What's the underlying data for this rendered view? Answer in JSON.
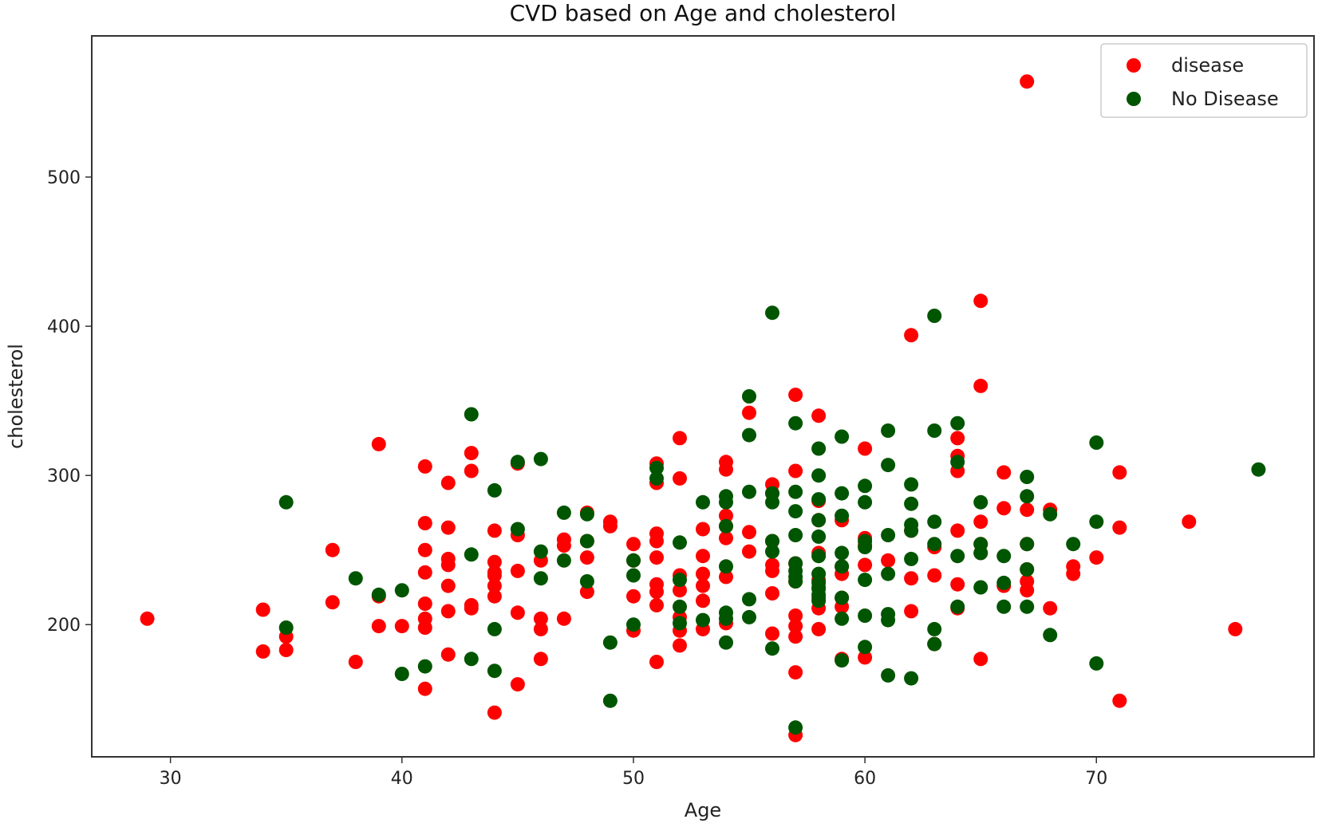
{
  "chart_data": {
    "type": "scatter",
    "title": "CVD based on Age and cholesterol",
    "xlabel": "Age",
    "ylabel": "cholesterol",
    "xlim": [
      26.6,
      79.4
    ],
    "ylim": [
      111.4,
      594.6
    ],
    "xticks": [
      30,
      40,
      50,
      60,
      70
    ],
    "yticks": [
      200,
      300,
      400,
      500
    ],
    "grid": false,
    "legend_position": "top-right",
    "series": [
      {
        "name": "disease",
        "color": "#ff0000",
        "points": [
          [
            29,
            204
          ],
          [
            34,
            182
          ],
          [
            34,
            210
          ],
          [
            35,
            192
          ],
          [
            35,
            183
          ],
          [
            37,
            215
          ],
          [
            37,
            250
          ],
          [
            38,
            175
          ],
          [
            39,
            199
          ],
          [
            39,
            219
          ],
          [
            39,
            321
          ],
          [
            40,
            199
          ],
          [
            41,
            157
          ],
          [
            41,
            198
          ],
          [
            41,
            204
          ],
          [
            41,
            214
          ],
          [
            41,
            235
          ],
          [
            41,
            250
          ],
          [
            41,
            268
          ],
          [
            41,
            306
          ],
          [
            42,
            180
          ],
          [
            42,
            209
          ],
          [
            42,
            226
          ],
          [
            42,
            240
          ],
          [
            42,
            244
          ],
          [
            42,
            265
          ],
          [
            42,
            295
          ],
          [
            43,
            211
          ],
          [
            43,
            213
          ],
          [
            43,
            303
          ],
          [
            43,
            315
          ],
          [
            44,
            141
          ],
          [
            44,
            219
          ],
          [
            44,
            226
          ],
          [
            44,
            233
          ],
          [
            44,
            235
          ],
          [
            44,
            242
          ],
          [
            44,
            263
          ],
          [
            45,
            160
          ],
          [
            45,
            208
          ],
          [
            45,
            236
          ],
          [
            45,
            260
          ],
          [
            45,
            308
          ],
          [
            46,
            177
          ],
          [
            46,
            197
          ],
          [
            46,
            204
          ],
          [
            46,
            243
          ],
          [
            47,
            204
          ],
          [
            47,
            253
          ],
          [
            47,
            257
          ],
          [
            48,
            222
          ],
          [
            48,
            245
          ],
          [
            48,
            256
          ],
          [
            48,
            275
          ],
          [
            49,
            266
          ],
          [
            49,
            269
          ],
          [
            50,
            196
          ],
          [
            50,
            219
          ],
          [
            50,
            243
          ],
          [
            50,
            254
          ],
          [
            51,
            175
          ],
          [
            51,
            213
          ],
          [
            51,
            222
          ],
          [
            51,
            227
          ],
          [
            51,
            245
          ],
          [
            51,
            256
          ],
          [
            51,
            261
          ],
          [
            51,
            295
          ],
          [
            51,
            308
          ],
          [
            52,
            186
          ],
          [
            52,
            196
          ],
          [
            52,
            205
          ],
          [
            52,
            223
          ],
          [
            52,
            233
          ],
          [
            52,
            298
          ],
          [
            52,
            325
          ],
          [
            53,
            197
          ],
          [
            53,
            216
          ],
          [
            53,
            226
          ],
          [
            53,
            234
          ],
          [
            53,
            246
          ],
          [
            53,
            264
          ],
          [
            54,
            201
          ],
          [
            54,
            232
          ],
          [
            54,
            258
          ],
          [
            54,
            266
          ],
          [
            54,
            273
          ],
          [
            54,
            304
          ],
          [
            54,
            309
          ],
          [
            55,
            249
          ],
          [
            55,
            262
          ],
          [
            55,
            342
          ],
          [
            56,
            194
          ],
          [
            56,
            221
          ],
          [
            56,
            236
          ],
          [
            56,
            240
          ],
          [
            56,
            256
          ],
          [
            56,
            288
          ],
          [
            56,
            294
          ],
          [
            57,
            126
          ],
          [
            57,
            168
          ],
          [
            57,
            192
          ],
          [
            57,
            199
          ],
          [
            57,
            206
          ],
          [
            57,
            229
          ],
          [
            57,
            241
          ],
          [
            57,
            303
          ],
          [
            57,
            354
          ],
          [
            58,
            197
          ],
          [
            58,
            211
          ],
          [
            58,
            218
          ],
          [
            58,
            225
          ],
          [
            58,
            230
          ],
          [
            58,
            248
          ],
          [
            58,
            270
          ],
          [
            58,
            283
          ],
          [
            58,
            340
          ],
          [
            59,
            177
          ],
          [
            59,
            212
          ],
          [
            59,
            218
          ],
          [
            59,
            234
          ],
          [
            59,
            239
          ],
          [
            59,
            270
          ],
          [
            60,
            178
          ],
          [
            60,
            240
          ],
          [
            60,
            253
          ],
          [
            60,
            258
          ],
          [
            60,
            318
          ],
          [
            61,
            243
          ],
          [
            62,
            209
          ],
          [
            62,
            231
          ],
          [
            62,
            263
          ],
          [
            62,
            394
          ],
          [
            63,
            187
          ],
          [
            63,
            233
          ],
          [
            63,
            252
          ],
          [
            64,
            211
          ],
          [
            64,
            227
          ],
          [
            64,
            263
          ],
          [
            64,
            303
          ],
          [
            64,
            313
          ],
          [
            64,
            325
          ],
          [
            65,
            177
          ],
          [
            65,
            248
          ],
          [
            65,
            254
          ],
          [
            65,
            269
          ],
          [
            65,
            360
          ],
          [
            65,
            417
          ],
          [
            66,
            226
          ],
          [
            66,
            278
          ],
          [
            66,
            302
          ],
          [
            67,
            223
          ],
          [
            67,
            229
          ],
          [
            67,
            237
          ],
          [
            67,
            254
          ],
          [
            67,
            277
          ],
          [
            67,
            564
          ],
          [
            68,
            211
          ],
          [
            68,
            277
          ],
          [
            69,
            234
          ],
          [
            69,
            239
          ],
          [
            70,
            245
          ],
          [
            71,
            149
          ],
          [
            71,
            265
          ],
          [
            71,
            302
          ],
          [
            74,
            269
          ],
          [
            76,
            197
          ]
        ]
      },
      {
        "name": "No Disease",
        "color": "#005500",
        "points": [
          [
            35,
            282
          ],
          [
            35,
            198
          ],
          [
            38,
            231
          ],
          [
            39,
            220
          ],
          [
            40,
            167
          ],
          [
            40,
            223
          ],
          [
            41,
            172
          ],
          [
            43,
            177
          ],
          [
            43,
            247
          ],
          [
            43,
            341
          ],
          [
            44,
            169
          ],
          [
            44,
            197
          ],
          [
            44,
            290
          ],
          [
            45,
            264
          ],
          [
            45,
            309
          ],
          [
            46,
            231
          ],
          [
            46,
            249
          ],
          [
            46,
            311
          ],
          [
            47,
            243
          ],
          [
            47,
            275
          ],
          [
            48,
            229
          ],
          [
            48,
            256
          ],
          [
            48,
            274
          ],
          [
            49,
            149
          ],
          [
            49,
            188
          ],
          [
            50,
            200
          ],
          [
            50,
            233
          ],
          [
            50,
            243
          ],
          [
            51,
            298
          ],
          [
            51,
            305
          ],
          [
            52,
            201
          ],
          [
            52,
            212
          ],
          [
            52,
            230
          ],
          [
            52,
            255
          ],
          [
            53,
            203
          ],
          [
            53,
            282
          ],
          [
            54,
            188
          ],
          [
            54,
            204
          ],
          [
            54,
            208
          ],
          [
            54,
            239
          ],
          [
            54,
            266
          ],
          [
            54,
            282
          ],
          [
            54,
            286
          ],
          [
            55,
            205
          ],
          [
            55,
            217
          ],
          [
            55,
            289
          ],
          [
            55,
            327
          ],
          [
            55,
            353
          ],
          [
            56,
            184
          ],
          [
            56,
            249
          ],
          [
            56,
            256
          ],
          [
            56,
            282
          ],
          [
            56,
            288
          ],
          [
            56,
            409
          ],
          [
            57,
            131
          ],
          [
            57,
            229
          ],
          [
            57,
            232
          ],
          [
            57,
            236
          ],
          [
            57,
            241
          ],
          [
            57,
            260
          ],
          [
            57,
            276
          ],
          [
            57,
            289
          ],
          [
            57,
            335
          ],
          [
            58,
            216
          ],
          [
            58,
            220
          ],
          [
            58,
            224
          ],
          [
            58,
            228
          ],
          [
            58,
            234
          ],
          [
            58,
            246
          ],
          [
            58,
            259
          ],
          [
            58,
            270
          ],
          [
            58,
            284
          ],
          [
            58,
            300
          ],
          [
            58,
            318
          ],
          [
            59,
            176
          ],
          [
            59,
            204
          ],
          [
            59,
            218
          ],
          [
            59,
            239
          ],
          [
            59,
            248
          ],
          [
            59,
            273
          ],
          [
            59,
            288
          ],
          [
            59,
            326
          ],
          [
            60,
            185
          ],
          [
            60,
            206
          ],
          [
            60,
            230
          ],
          [
            60,
            252
          ],
          [
            60,
            256
          ],
          [
            60,
            282
          ],
          [
            60,
            293
          ],
          [
            61,
            166
          ],
          [
            61,
            203
          ],
          [
            61,
            207
          ],
          [
            61,
            234
          ],
          [
            61,
            260
          ],
          [
            61,
            307
          ],
          [
            61,
            330
          ],
          [
            62,
            164
          ],
          [
            62,
            244
          ],
          [
            62,
            263
          ],
          [
            62,
            267
          ],
          [
            62,
            281
          ],
          [
            62,
            294
          ],
          [
            63,
            187
          ],
          [
            63,
            197
          ],
          [
            63,
            254
          ],
          [
            63,
            269
          ],
          [
            63,
            330
          ],
          [
            63,
            407
          ],
          [
            64,
            212
          ],
          [
            64,
            246
          ],
          [
            64,
            309
          ],
          [
            64,
            335
          ],
          [
            65,
            225
          ],
          [
            65,
            248
          ],
          [
            65,
            254
          ],
          [
            65,
            282
          ],
          [
            66,
            212
          ],
          [
            66,
            228
          ],
          [
            66,
            246
          ],
          [
            67,
            212
          ],
          [
            67,
            237
          ],
          [
            67,
            254
          ],
          [
            67,
            286
          ],
          [
            67,
            299
          ],
          [
            68,
            193
          ],
          [
            68,
            274
          ],
          [
            69,
            254
          ],
          [
            70,
            174
          ],
          [
            70,
            269
          ],
          [
            70,
            322
          ],
          [
            77,
            304
          ]
        ]
      }
    ]
  }
}
